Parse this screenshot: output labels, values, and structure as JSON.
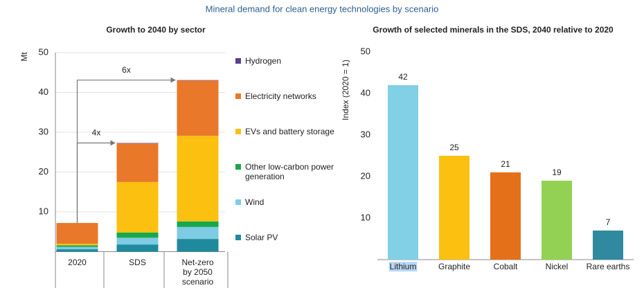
{
  "title": "Mineral demand for clean energy technologies by scenario",
  "chart_data": [
    {
      "type": "stacked_bar",
      "title": "Growth to 2040 by sector",
      "y_label": "Mt",
      "categories": [
        "2020",
        "SDS",
        "Net-zero by 2050 scenario"
      ],
      "series": [
        {
          "name": "Solar PV",
          "color": "#1f8a9e",
          "values": [
            0.6,
            1.8,
            3.2
          ]
        },
        {
          "name": "Wind",
          "color": "#7ecbe4",
          "values": [
            0.6,
            1.7,
            3.0
          ]
        },
        {
          "name": "Other low-carbon power generation",
          "color": "#17a84b",
          "values": [
            0.4,
            1.3,
            1.4
          ]
        },
        {
          "name": "EVs and battery storage",
          "color": "#fbc010",
          "values": [
            0.4,
            12.7,
            21.5
          ]
        },
        {
          "name": "Electricity networks",
          "color": "#e9782a",
          "values": [
            5.2,
            9.7,
            13.9
          ]
        },
        {
          "name": "Hydrogen",
          "color": "#5b3d91",
          "values": [
            0,
            0.1,
            0.1
          ]
        }
      ],
      "annotations": [
        "4x",
        "6x"
      ],
      "ylim": [
        0,
        50
      ],
      "yticks": [
        10,
        20,
        30,
        40,
        50
      ],
      "grid": true
    },
    {
      "type": "bar",
      "title": "Growth of selected minerals in the SDS, 2040 relative to 2020",
      "y_label": "Index (2020 = 1)",
      "categories": [
        "Lithium",
        "Graphite",
        "Cobalt",
        "Nickel",
        "Rare earths"
      ],
      "values": [
        42,
        25,
        21,
        19,
        7
      ],
      "colors": [
        "#82d0e6",
        "#fbc010",
        "#e5701a",
        "#93d153",
        "#2f8aa0"
      ],
      "ylim": [
        0,
        50
      ],
      "yticks": [
        10,
        20,
        30,
        40,
        50
      ],
      "grid": false
    }
  ]
}
